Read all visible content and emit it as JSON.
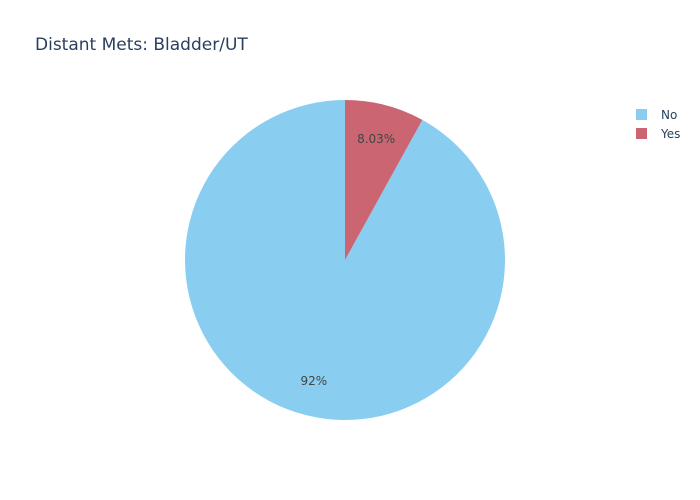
{
  "chart_data": {
    "type": "pie",
    "title": "Distant Mets: Bladder/UT",
    "slices": [
      {
        "label": "No",
        "value": 91.97,
        "display": "92%",
        "color": "#89CDF0"
      },
      {
        "label": "Yes",
        "value": 8.03,
        "display": "8.03%",
        "color": "#CB6572"
      }
    ],
    "legend": {
      "placement": "top-right",
      "items": [
        "No",
        "Yes"
      ]
    },
    "direction": "counterclockwise",
    "start": "top"
  }
}
